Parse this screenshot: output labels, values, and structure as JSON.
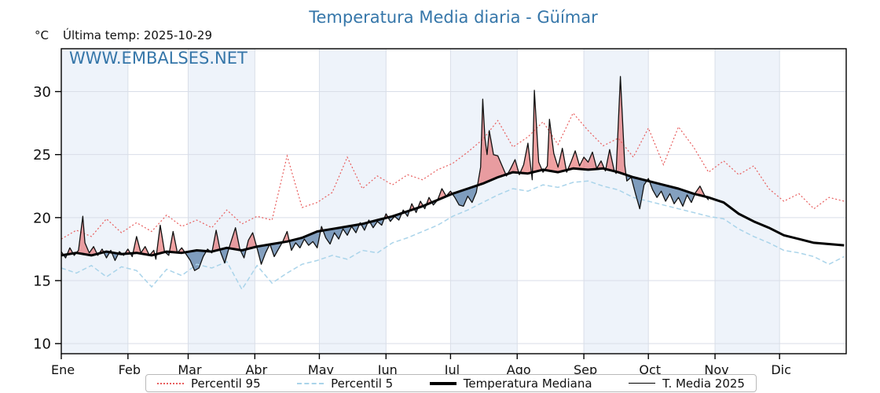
{
  "title": "Temperatura Media diaria - Güímar",
  "unit": "°C",
  "last_temp_label": "Última temp: 2025-10-29",
  "watermark": "WWW.EMBALSES.NET",
  "colors": {
    "accent_blue": "#3576a9",
    "band": "#eef3fa",
    "grid": "#d9dee8",
    "spine": "#000000",
    "p95": "#e85f5f",
    "p5": "#aad4ea",
    "median": "#000000",
    "t2025": "#111111",
    "fill_above": "rgba(225,70,70,0.50)",
    "fill_below": "rgba(56,102,152,0.62)"
  },
  "legend": [
    {
      "label": "Percentil 95"
    },
    {
      "label": "Percentil 5"
    },
    {
      "label": "Temperatura Mediana"
    },
    {
      "label": "T. Media 2025"
    }
  ],
  "chart_data": {
    "type": "line",
    "title": "Temperatura Media diaria - Güímar",
    "xlabel": "",
    "ylabel": "°C",
    "xlim": [
      1,
      366
    ],
    "ylim": [
      9.2,
      33.4
    ],
    "yticks": [
      10,
      15,
      20,
      25,
      30
    ],
    "x_tick_labels": [
      "Ene",
      "Feb",
      "Mar",
      "Abr",
      "May",
      "Jun",
      "Jul",
      "Ago",
      "Sep",
      "Oct",
      "Nov",
      "Dic"
    ],
    "month_start_days": [
      1,
      32,
      60,
      91,
      121,
      152,
      182,
      213,
      244,
      274,
      305,
      335
    ],
    "shaded_month_indices": [
      0,
      2,
      4,
      6,
      8,
      10
    ],
    "grid": true,
    "legend_position": "bottom-center",
    "days": [
      1,
      8,
      15,
      22,
      29,
      36,
      43,
      50,
      57,
      64,
      71,
      78,
      85,
      92,
      99,
      106,
      113,
      120,
      127,
      134,
      141,
      148,
      155,
      162,
      169,
      176,
      183,
      190,
      197,
      204,
      211,
      218,
      225,
      232,
      239,
      246,
      253,
      260,
      267,
      274,
      281,
      288,
      295,
      302,
      309,
      316,
      323,
      330,
      337,
      344,
      351,
      358,
      365
    ],
    "series": [
      {
        "name": "Percentil 95",
        "style": "dotted",
        "color": "#e85f5f",
        "values": [
          18.3,
          19.0,
          18.5,
          19.9,
          18.8,
          19.6,
          18.9,
          20.2,
          19.3,
          19.8,
          19.2,
          20.6,
          19.5,
          20.1,
          19.8,
          24.9,
          20.8,
          21.2,
          22.0,
          24.8,
          22.3,
          23.3,
          22.6,
          23.4,
          23.0,
          23.8,
          24.3,
          25.2,
          26.2,
          27.7,
          25.6,
          26.4,
          27.6,
          25.8,
          28.3,
          26.9,
          25.7,
          26.3,
          24.8,
          27.1,
          24.2,
          27.2,
          25.6,
          23.6,
          24.5,
          23.4,
          24.1,
          22.3,
          21.3,
          21.9,
          20.7,
          21.6,
          21.3
        ]
      },
      {
        "name": "Percentil 5",
        "style": "dashed",
        "color": "#aad4ea",
        "values": [
          16.0,
          15.6,
          16.2,
          15.3,
          16.1,
          15.8,
          14.5,
          15.9,
          15.4,
          16.3,
          16.0,
          16.5,
          14.3,
          16.2,
          14.8,
          15.6,
          16.3,
          16.6,
          17.0,
          16.7,
          17.4,
          17.2,
          18.0,
          18.4,
          18.9,
          19.4,
          20.1,
          20.6,
          21.2,
          21.8,
          22.3,
          22.1,
          22.6,
          22.4,
          22.8,
          22.9,
          22.5,
          22.2,
          21.6,
          21.3,
          21.0,
          20.7,
          20.4,
          20.1,
          19.9,
          19.1,
          18.5,
          18.0,
          17.4,
          17.2,
          16.9,
          16.3,
          16.9
        ]
      },
      {
        "name": "Temperatura Mediana",
        "style": "solid-thick",
        "color": "#000000",
        "values": [
          17.0,
          17.2,
          17.0,
          17.3,
          17.1,
          17.2,
          17.0,
          17.3,
          17.2,
          17.4,
          17.3,
          17.6,
          17.4,
          17.7,
          17.9,
          18.1,
          18.4,
          18.9,
          19.1,
          19.3,
          19.5,
          19.8,
          20.1,
          20.5,
          20.9,
          21.4,
          21.9,
          22.3,
          22.7,
          23.2,
          23.6,
          23.5,
          23.8,
          23.6,
          23.9,
          23.8,
          23.9,
          23.6,
          23.2,
          22.9,
          22.6,
          22.3,
          21.9,
          21.6,
          21.2,
          20.3,
          19.7,
          19.2,
          18.6,
          18.3,
          18.0,
          17.9,
          17.8
        ]
      },
      {
        "name": "T. Media 2025",
        "style": "solid-thin",
        "color": "#111111",
        "ends": "2025-10-29",
        "points": [
          [
            1,
            17.3
          ],
          [
            3,
            16.8
          ],
          [
            5,
            17.6
          ],
          [
            7,
            17.0
          ],
          [
            9,
            17.4
          ],
          [
            11,
            20.1
          ],
          [
            12,
            18.0
          ],
          [
            14,
            17.2
          ],
          [
            16,
            17.7
          ],
          [
            18,
            17.0
          ],
          [
            20,
            17.5
          ],
          [
            22,
            16.8
          ],
          [
            24,
            17.4
          ],
          [
            26,
            16.6
          ],
          [
            28,
            17.3
          ],
          [
            30,
            17.0
          ],
          [
            32,
            17.5
          ],
          [
            34,
            16.9
          ],
          [
            36,
            18.5
          ],
          [
            38,
            17.2
          ],
          [
            40,
            17.7
          ],
          [
            42,
            17.0
          ],
          [
            44,
            17.4
          ],
          [
            45,
            16.7
          ],
          [
            47,
            19.4
          ],
          [
            49,
            17.3
          ],
          [
            51,
            17.0
          ],
          [
            53,
            18.9
          ],
          [
            55,
            17.2
          ],
          [
            57,
            17.6
          ],
          [
            59,
            17.1
          ],
          [
            61,
            16.6
          ],
          [
            63,
            15.8
          ],
          [
            65,
            16.0
          ],
          [
            67,
            16.9
          ],
          [
            69,
            17.5
          ],
          [
            71,
            17.2
          ],
          [
            73,
            19.0
          ],
          [
            75,
            17.3
          ],
          [
            77,
            16.4
          ],
          [
            79,
            17.6
          ],
          [
            82,
            19.2
          ],
          [
            84,
            17.5
          ],
          [
            86,
            16.8
          ],
          [
            88,
            18.2
          ],
          [
            90,
            18.8
          ],
          [
            92,
            17.6
          ],
          [
            94,
            16.3
          ],
          [
            96,
            17.2
          ],
          [
            98,
            17.9
          ],
          [
            100,
            16.9
          ],
          [
            102,
            17.5
          ],
          [
            104,
            18.1
          ],
          [
            106,
            18.9
          ],
          [
            108,
            17.4
          ],
          [
            110,
            18.0
          ],
          [
            112,
            17.6
          ],
          [
            114,
            18.3
          ],
          [
            116,
            17.8
          ],
          [
            118,
            18.1
          ],
          [
            120,
            17.6
          ],
          [
            122,
            19.3
          ],
          [
            124,
            18.4
          ],
          [
            126,
            17.9
          ],
          [
            128,
            18.8
          ],
          [
            130,
            18.3
          ],
          [
            132,
            19.1
          ],
          [
            134,
            18.6
          ],
          [
            136,
            19.3
          ],
          [
            138,
            18.8
          ],
          [
            140,
            19.6
          ],
          [
            142,
            19.0
          ],
          [
            144,
            19.8
          ],
          [
            146,
            19.2
          ],
          [
            148,
            19.7
          ],
          [
            150,
            19.4
          ],
          [
            152,
            20.3
          ],
          [
            154,
            19.7
          ],
          [
            156,
            20.1
          ],
          [
            158,
            19.8
          ],
          [
            160,
            20.6
          ],
          [
            162,
            20.1
          ],
          [
            164,
            21.1
          ],
          [
            166,
            20.4
          ],
          [
            168,
            21.3
          ],
          [
            170,
            20.7
          ],
          [
            172,
            21.6
          ],
          [
            174,
            21.0
          ],
          [
            176,
            21.4
          ],
          [
            178,
            22.3
          ],
          [
            180,
            21.7
          ],
          [
            182,
            22.1
          ],
          [
            184,
            21.6
          ],
          [
            186,
            21.0
          ],
          [
            188,
            20.9
          ],
          [
            190,
            21.7
          ],
          [
            192,
            21.2
          ],
          [
            194,
            22.0
          ],
          [
            196,
            24.0
          ],
          [
            197,
            29.4
          ],
          [
            198,
            26.3
          ],
          [
            199,
            25.0
          ],
          [
            200,
            26.9
          ],
          [
            202,
            25.0
          ],
          [
            204,
            24.9
          ],
          [
            206,
            24.1
          ],
          [
            208,
            23.3
          ],
          [
            210,
            23.9
          ],
          [
            212,
            24.6
          ],
          [
            214,
            23.4
          ],
          [
            216,
            24.2
          ],
          [
            218,
            25.9
          ],
          [
            220,
            23.0
          ],
          [
            221,
            30.1
          ],
          [
            223,
            24.4
          ],
          [
            225,
            23.6
          ],
          [
            227,
            24.1
          ],
          [
            228,
            27.8
          ],
          [
            230,
            25.1
          ],
          [
            232,
            24.0
          ],
          [
            234,
            25.5
          ],
          [
            236,
            23.6
          ],
          [
            238,
            24.4
          ],
          [
            240,
            25.3
          ],
          [
            242,
            24.1
          ],
          [
            244,
            24.8
          ],
          [
            246,
            24.4
          ],
          [
            248,
            25.2
          ],
          [
            250,
            23.9
          ],
          [
            252,
            24.5
          ],
          [
            254,
            23.7
          ],
          [
            256,
            25.4
          ],
          [
            258,
            23.8
          ],
          [
            259,
            23.5
          ],
          [
            261,
            31.2
          ],
          [
            263,
            24.2
          ],
          [
            264,
            22.9
          ],
          [
            266,
            23.2
          ],
          [
            268,
            21.9
          ],
          [
            270,
            20.7
          ],
          [
            272,
            22.6
          ],
          [
            274,
            23.1
          ],
          [
            276,
            22.2
          ],
          [
            278,
            21.6
          ],
          [
            280,
            22.1
          ],
          [
            282,
            21.3
          ],
          [
            284,
            21.9
          ],
          [
            286,
            21.1
          ],
          [
            288,
            21.6
          ],
          [
            290,
            20.9
          ],
          [
            292,
            21.8
          ],
          [
            294,
            21.2
          ],
          [
            296,
            22.0
          ],
          [
            298,
            22.5
          ],
          [
            300,
            21.8
          ],
          [
            302,
            21.4
          ]
        ]
      }
    ],
    "fills": {
      "above_color": "rgba(225,70,70,0.50)",
      "below_color": "rgba(56,102,152,0.62)"
    }
  }
}
